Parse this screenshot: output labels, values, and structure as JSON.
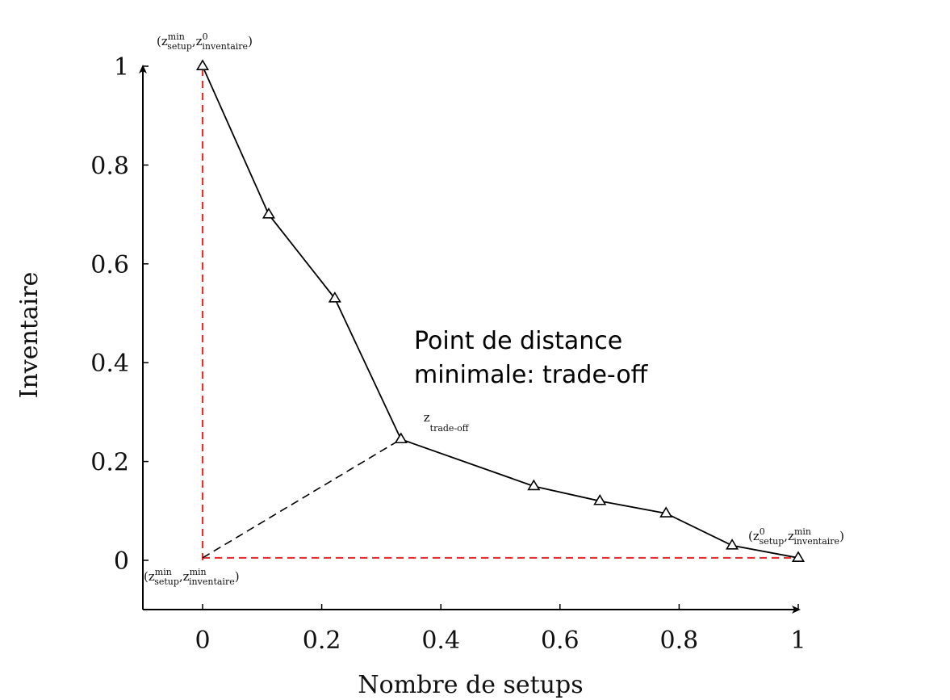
{
  "chart_data": {
    "type": "line",
    "title": "",
    "xlabel": "Nombre de setups",
    "ylabel": "Inventaire",
    "xlim": [
      -0.1,
      1.0
    ],
    "ylim": [
      -0.1,
      1.0
    ],
    "xticks": [
      "0",
      "0.2",
      "0.4",
      "0.6",
      "0.8",
      "1"
    ],
    "yticks": [
      "0",
      "0.2",
      "0.4",
      "0.6",
      "0.8",
      "1"
    ],
    "grid": false,
    "legend": "none",
    "series": [
      {
        "marker": "triangle",
        "style": "solid",
        "color": "#000000",
        "x": [
          0,
          0.111,
          0.222,
          0.333,
          0.556,
          0.667,
          0.778,
          0.889,
          1.0
        ],
        "y": [
          1.0,
          0.7,
          0.53,
          0.245,
          0.15,
          0.12,
          0.095,
          0.03,
          0.005
        ]
      }
    ],
    "reference_lines": [
      {
        "style": "dashed",
        "color": "#e8312e",
        "x": [
          0,
          0
        ],
        "y": [
          0,
          1.0
        ]
      },
      {
        "style": "dashed",
        "color": "#e8312e",
        "x": [
          0,
          1.0
        ],
        "y": [
          0.005,
          0.005
        ]
      },
      {
        "style": "dashed",
        "color": "#000000",
        "x": [
          0,
          0.333
        ],
        "y": [
          0.005,
          0.245
        ]
      }
    ],
    "point_labels": [
      {
        "x": 0,
        "y": 1.0,
        "parts": [
          "(z",
          "min",
          "setup",
          ",z",
          "0",
          "inventaire",
          ")"
        ]
      },
      {
        "x": 0.333,
        "y": 0.245,
        "parts": [
          "z",
          "",
          "trade-off",
          "",
          "",
          "",
          ""
        ]
      },
      {
        "x": 1.0,
        "y": 0.005,
        "parts": [
          "(z",
          "0",
          "setup",
          ",z",
          "min",
          "inventaire",
          ")"
        ]
      },
      {
        "x": 0,
        "y": 0.005,
        "parts": [
          "(z",
          "min",
          "setup",
          ",z",
          "min",
          "inventaire",
          ")"
        ]
      }
    ],
    "annotation": [
      "Point de distance",
      "minimale: trade-off"
    ]
  }
}
